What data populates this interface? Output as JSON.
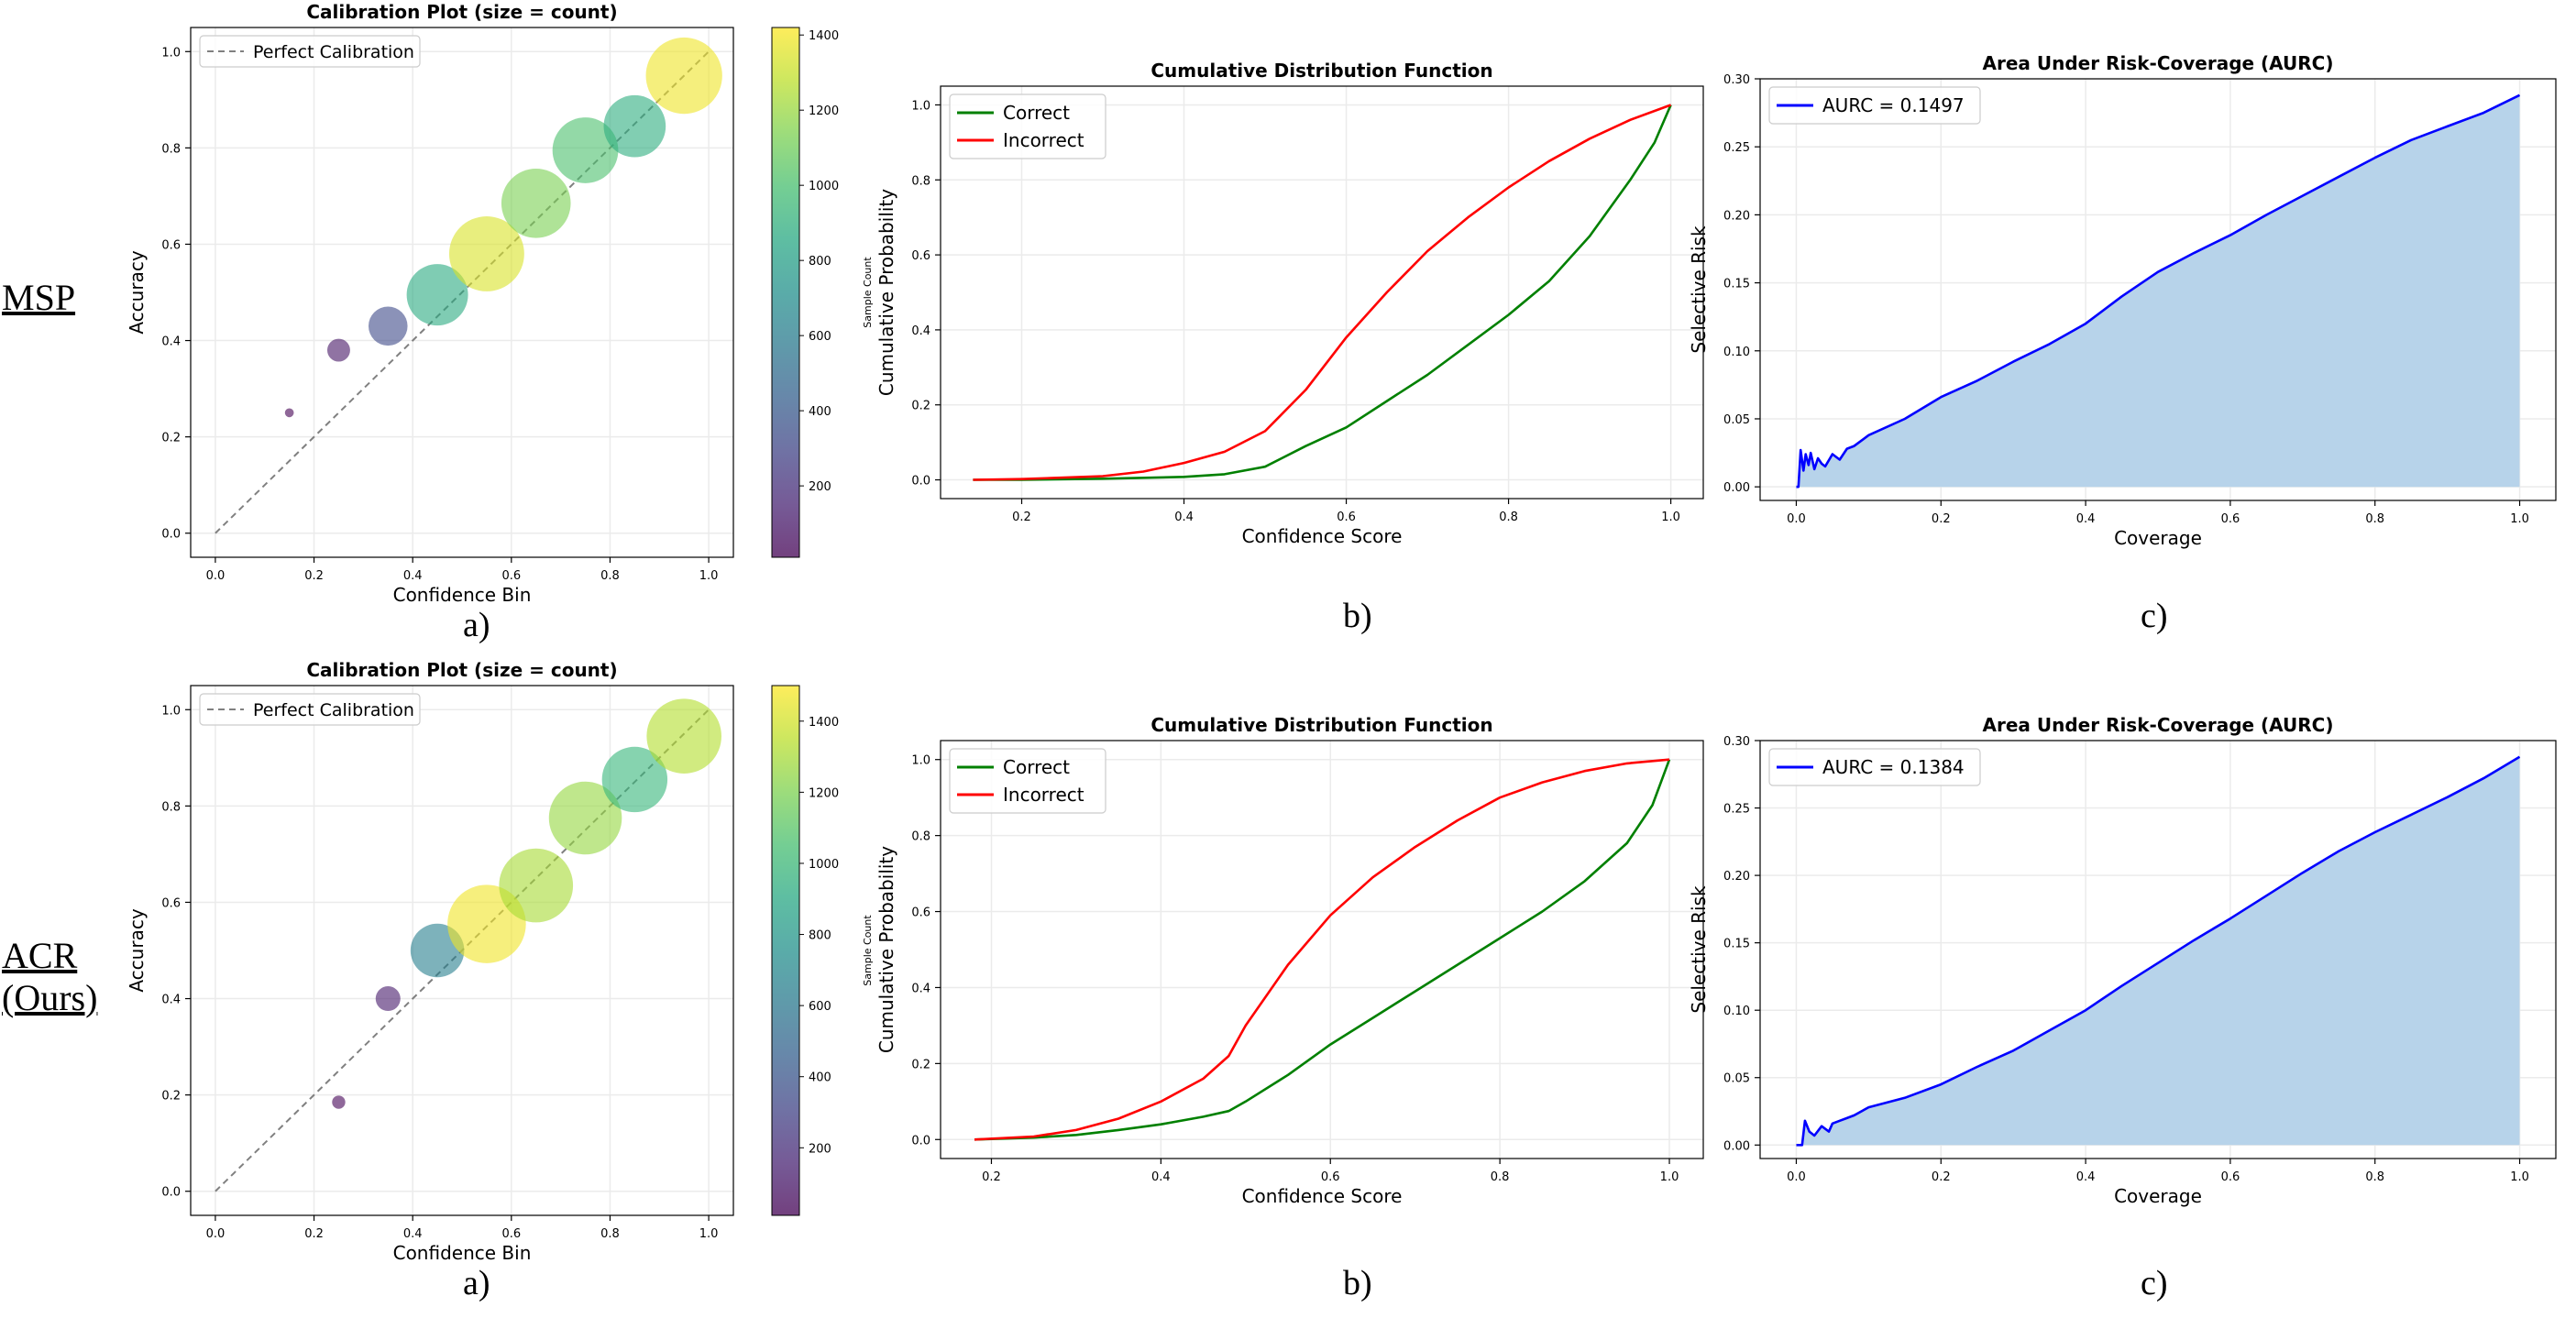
{
  "row_labels": [
    {
      "lines": [
        "MSP"
      ]
    },
    {
      "lines": [
        "ACR",
        "(Ours)"
      ]
    }
  ],
  "panel_labels": [
    "a)",
    "b)",
    "c)"
  ],
  "colors": {
    "perfect_line": "#808080",
    "correct": "#008000",
    "incorrect": "#ff0000",
    "aurc_line": "#0000ff",
    "aurc_fill": "#b7d3ea",
    "grid": "#ebebeb"
  },
  "chart_data": [
    {
      "type": "scatter",
      "row": "MSP",
      "title": "Calibration Plot (size = count)",
      "xlabel": "Confidence Bin",
      "ylabel": "Accuracy",
      "xlim": [
        -0.05,
        1.05
      ],
      "ylim": [
        -0.05,
        1.05
      ],
      "xticks": [
        0.0,
        0.2,
        0.4,
        0.6,
        0.8,
        1.0
      ],
      "yticks": [
        0.0,
        0.2,
        0.4,
        0.6,
        0.8,
        1.0
      ],
      "grid": true,
      "legend": {
        "position": "upper-left",
        "entries": [
          "Perfect Calibration"
        ]
      },
      "colorbar": {
        "label": "Sample Count",
        "ticks": [
          200,
          400,
          600,
          800,
          1000,
          1200,
          1400
        ],
        "range": [
          10,
          1420
        ],
        "colormap": "viridis"
      },
      "points": [
        {
          "x": 0.15,
          "y": 0.25,
          "count": 5
        },
        {
          "x": 0.25,
          "y": 0.38,
          "count": 90
        },
        {
          "x": 0.35,
          "y": 0.43,
          "count": 320
        },
        {
          "x": 0.45,
          "y": 0.495,
          "count": 870
        },
        {
          "x": 0.55,
          "y": 0.58,
          "count": 1340
        },
        {
          "x": 0.65,
          "y": 0.685,
          "count": 1130
        },
        {
          "x": 0.75,
          "y": 0.795,
          "count": 1010
        },
        {
          "x": 0.85,
          "y": 0.845,
          "count": 890
        },
        {
          "x": 0.95,
          "y": 0.95,
          "count": 1390
        }
      ]
    },
    {
      "type": "line",
      "row": "MSP",
      "title": "Cumulative Distribution Function",
      "xlabel": "Confidence Score",
      "ylabel": "Cumulative Probability",
      "xlim": [
        0.1,
        1.04
      ],
      "ylim": [
        -0.05,
        1.05
      ],
      "xticks": [
        0.2,
        0.4,
        0.6,
        0.8,
        1.0
      ],
      "yticks": [
        0.0,
        0.2,
        0.4,
        0.6,
        0.8,
        1.0
      ],
      "grid": true,
      "legend": {
        "position": "upper-left"
      },
      "series": [
        {
          "name": "Correct",
          "color": "#008000",
          "x": [
            0.14,
            0.2,
            0.3,
            0.4,
            0.45,
            0.5,
            0.55,
            0.6,
            0.65,
            0.7,
            0.75,
            0.8,
            0.85,
            0.9,
            0.95,
            0.98,
            1.0
          ],
          "y": [
            0.0,
            0.0,
            0.003,
            0.008,
            0.015,
            0.035,
            0.09,
            0.14,
            0.21,
            0.28,
            0.36,
            0.44,
            0.53,
            0.65,
            0.8,
            0.9,
            1.0
          ]
        },
        {
          "name": "Incorrect",
          "color": "#ff0000",
          "x": [
            0.14,
            0.2,
            0.3,
            0.35,
            0.4,
            0.45,
            0.5,
            0.55,
            0.6,
            0.65,
            0.7,
            0.75,
            0.8,
            0.85,
            0.9,
            0.95,
            1.0
          ],
          "y": [
            0.0,
            0.002,
            0.01,
            0.022,
            0.045,
            0.075,
            0.13,
            0.24,
            0.38,
            0.5,
            0.61,
            0.7,
            0.78,
            0.85,
            0.91,
            0.96,
            1.0
          ]
        }
      ]
    },
    {
      "type": "area",
      "row": "MSP",
      "title": "Area Under Risk-Coverage (AURC)",
      "xlabel": "Coverage",
      "ylabel": "Selective Risk",
      "xlim": [
        -0.05,
        1.05
      ],
      "ylim": [
        -0.01,
        0.3
      ],
      "xticks": [
        0.0,
        0.2,
        0.4,
        0.6,
        0.8,
        1.0
      ],
      "yticks": [
        0.0,
        0.05,
        0.1,
        0.15,
        0.2,
        0.25,
        0.3
      ],
      "grid": true,
      "legend": {
        "position": "upper-left"
      },
      "series": [
        {
          "name": "AURC = 0.1497",
          "color": "#0000ff",
          "x": [
            0.0,
            0.003,
            0.006,
            0.01,
            0.013,
            0.017,
            0.02,
            0.025,
            0.03,
            0.035,
            0.04,
            0.05,
            0.06,
            0.07,
            0.08,
            0.1,
            0.15,
            0.2,
            0.25,
            0.3,
            0.35,
            0.4,
            0.45,
            0.5,
            0.55,
            0.6,
            0.65,
            0.7,
            0.75,
            0.8,
            0.85,
            0.9,
            0.95,
            1.0
          ],
          "y": [
            0.0,
            0.0,
            0.027,
            0.012,
            0.024,
            0.016,
            0.025,
            0.013,
            0.021,
            0.017,
            0.015,
            0.024,
            0.02,
            0.028,
            0.03,
            0.038,
            0.05,
            0.066,
            0.078,
            0.092,
            0.105,
            0.12,
            0.14,
            0.158,
            0.172,
            0.185,
            0.2,
            0.214,
            0.228,
            0.242,
            0.255,
            0.265,
            0.275,
            0.288
          ]
        }
      ]
    },
    {
      "type": "scatter",
      "row": "ACR (Ours)",
      "title": "Calibration Plot (size = count)",
      "xlabel": "Confidence Bin",
      "ylabel": "Accuracy",
      "xlim": [
        -0.05,
        1.05
      ],
      "ylim": [
        -0.05,
        1.05
      ],
      "xticks": [
        0.0,
        0.2,
        0.4,
        0.6,
        0.8,
        1.0
      ],
      "yticks": [
        0.0,
        0.2,
        0.4,
        0.6,
        0.8,
        1.0
      ],
      "grid": true,
      "legend": {
        "position": "upper-left",
        "entries": [
          "Perfect Calibration"
        ]
      },
      "colorbar": {
        "label": "Sample Count",
        "ticks": [
          200,
          400,
          600,
          800,
          1000,
          1200,
          1400
        ],
        "range": [
          10,
          1500
        ],
        "colormap": "viridis"
      },
      "points": [
        {
          "x": 0.25,
          "y": 0.185,
          "count": 20
        },
        {
          "x": 0.35,
          "y": 0.4,
          "count": 110
        },
        {
          "x": 0.45,
          "y": 0.5,
          "count": 650
        },
        {
          "x": 0.55,
          "y": 0.555,
          "count": 1470
        },
        {
          "x": 0.65,
          "y": 0.635,
          "count": 1300
        },
        {
          "x": 0.75,
          "y": 0.775,
          "count": 1260
        },
        {
          "x": 0.85,
          "y": 0.855,
          "count": 1000
        },
        {
          "x": 0.95,
          "y": 0.945,
          "count": 1330
        }
      ]
    },
    {
      "type": "line",
      "row": "ACR (Ours)",
      "title": "Cumulative Distribution Function",
      "xlabel": "Confidence Score",
      "ylabel": "Cumulative Probability",
      "xlim": [
        0.14,
        1.04
      ],
      "ylim": [
        -0.05,
        1.05
      ],
      "xticks": [
        0.2,
        0.4,
        0.6,
        0.8,
        1.0
      ],
      "yticks": [
        0.0,
        0.2,
        0.4,
        0.6,
        0.8,
        1.0
      ],
      "grid": true,
      "legend": {
        "position": "upper-left"
      },
      "series": [
        {
          "name": "Correct",
          "color": "#008000",
          "x": [
            0.18,
            0.25,
            0.3,
            0.35,
            0.4,
            0.45,
            0.48,
            0.5,
            0.55,
            0.6,
            0.65,
            0.7,
            0.75,
            0.8,
            0.85,
            0.9,
            0.95,
            0.98,
            1.0
          ],
          "y": [
            0.0,
            0.005,
            0.012,
            0.025,
            0.04,
            0.06,
            0.075,
            0.1,
            0.17,
            0.25,
            0.32,
            0.39,
            0.46,
            0.53,
            0.6,
            0.68,
            0.78,
            0.88,
            1.0
          ]
        },
        {
          "name": "Incorrect",
          "color": "#ff0000",
          "x": [
            0.18,
            0.25,
            0.3,
            0.35,
            0.4,
            0.45,
            0.48,
            0.5,
            0.55,
            0.6,
            0.65,
            0.7,
            0.75,
            0.8,
            0.85,
            0.9,
            0.95,
            1.0
          ],
          "y": [
            0.0,
            0.008,
            0.025,
            0.055,
            0.1,
            0.16,
            0.22,
            0.3,
            0.46,
            0.59,
            0.69,
            0.77,
            0.84,
            0.9,
            0.94,
            0.97,
            0.99,
            1.0
          ]
        }
      ]
    },
    {
      "type": "area",
      "row": "ACR (Ours)",
      "title": "Area Under Risk-Coverage (AURC)",
      "xlabel": "Coverage",
      "ylabel": "Selective Risk",
      "xlim": [
        -0.05,
        1.05
      ],
      "ylim": [
        -0.01,
        0.3
      ],
      "xticks": [
        0.0,
        0.2,
        0.4,
        0.6,
        0.8,
        1.0
      ],
      "yticks": [
        0.0,
        0.05,
        0.1,
        0.15,
        0.2,
        0.25,
        0.3
      ],
      "grid": true,
      "legend": {
        "position": "upper-left"
      },
      "series": [
        {
          "name": "AURC = 0.1384",
          "color": "#0000ff",
          "x": [
            0.0,
            0.008,
            0.012,
            0.018,
            0.025,
            0.035,
            0.045,
            0.05,
            0.06,
            0.07,
            0.08,
            0.1,
            0.15,
            0.2,
            0.25,
            0.3,
            0.35,
            0.4,
            0.45,
            0.5,
            0.55,
            0.6,
            0.65,
            0.7,
            0.75,
            0.8,
            0.85,
            0.9,
            0.95,
            1.0
          ],
          "y": [
            0.0,
            0.0,
            0.018,
            0.01,
            0.007,
            0.014,
            0.01,
            0.016,
            0.018,
            0.02,
            0.022,
            0.028,
            0.035,
            0.045,
            0.058,
            0.07,
            0.085,
            0.1,
            0.118,
            0.135,
            0.152,
            0.168,
            0.185,
            0.202,
            0.218,
            0.232,
            0.245,
            0.258,
            0.272,
            0.288
          ]
        }
      ]
    }
  ]
}
